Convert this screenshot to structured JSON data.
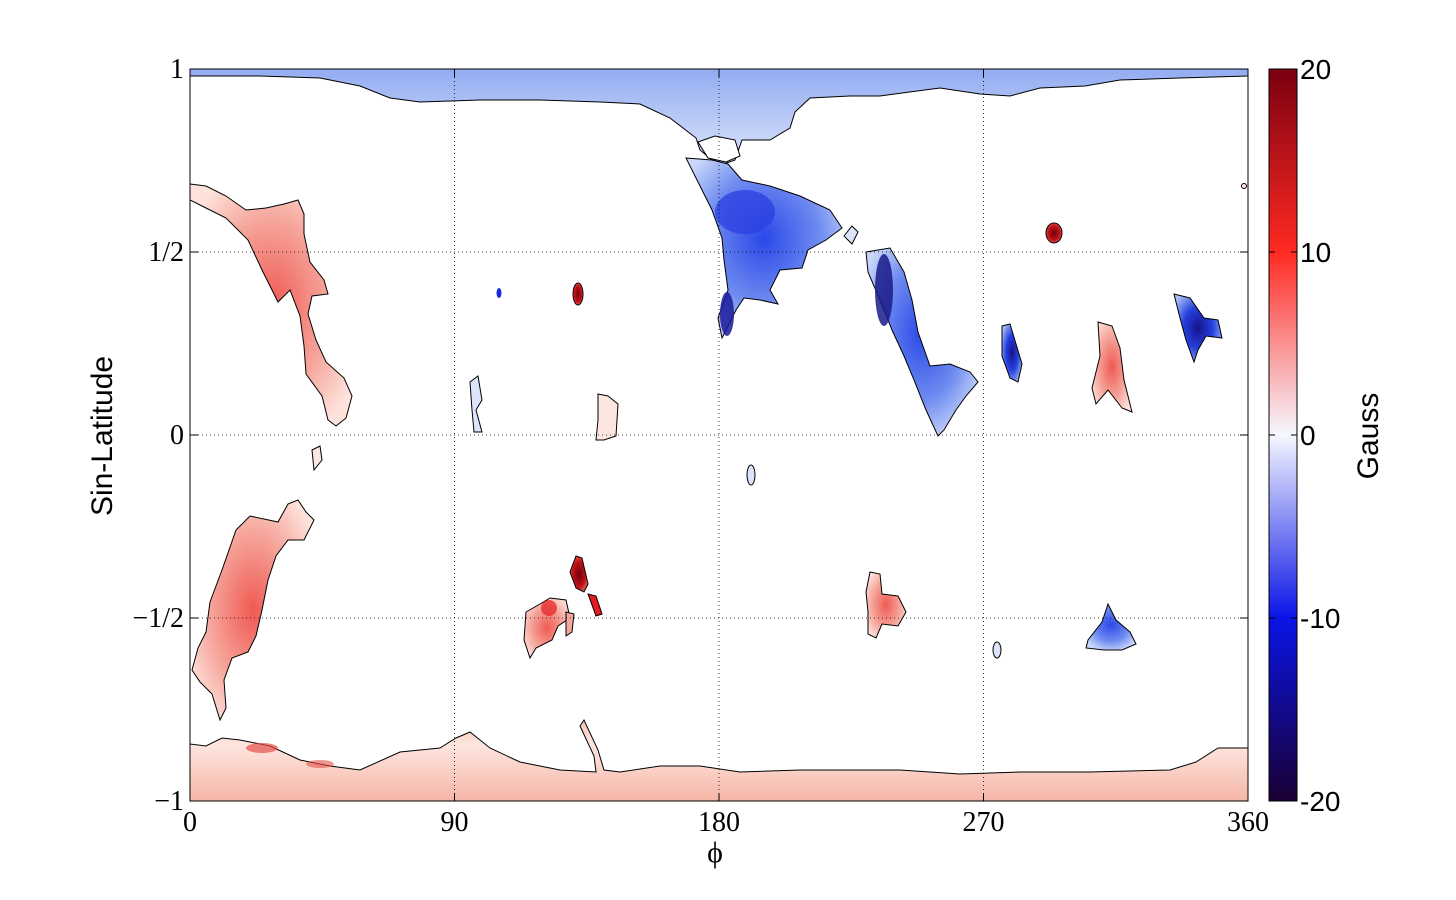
{
  "chart_data": {
    "type": "heatmap",
    "title": "",
    "xlabel": "ϕ",
    "ylabel": "Sin-Latitude",
    "xlim": [
      0,
      360
    ],
    "ylim": [
      -1,
      1
    ],
    "x_ticks": [
      {
        "value": 0,
        "label": "0"
      },
      {
        "value": 90,
        "label": "90"
      },
      {
        "value": 180,
        "label": "180"
      },
      {
        "value": 270,
        "label": "270"
      },
      {
        "value": 360,
        "label": "360"
      }
    ],
    "y_ticks": [
      {
        "value": 1,
        "label": "1"
      },
      {
        "value": 0.5,
        "label": "1/2"
      },
      {
        "value": 0,
        "label": "0"
      },
      {
        "value": -0.5,
        "label": "−1/2"
      },
      {
        "value": -1,
        "label": "−1"
      }
    ],
    "grid": true,
    "grid_style": "dotted",
    "colorbar": {
      "label": "Gauss",
      "range": [
        -20,
        20
      ],
      "ticks": [
        {
          "value": 20,
          "label": "20"
        },
        {
          "value": 10,
          "label": "10"
        },
        {
          "value": 0,
          "label": "0"
        },
        {
          "value": -10,
          "label": "-10"
        },
        {
          "value": -20,
          "label": "-20"
        }
      ],
      "colormap": [
        "#1a0033",
        "#0a14e6",
        "#f5f7ff",
        "#ff2a22",
        "#7a0010"
      ]
    },
    "regions": [
      {
        "name": "north-polar-cap",
        "polarity": "negative",
        "phi": [
          0,
          360
        ],
        "sinlat": [
          0.91,
          1.0
        ],
        "field_gauss": -4
      },
      {
        "name": "north-central-negative",
        "polarity": "negative",
        "phi": [
          168,
          224
        ],
        "sinlat": [
          0.28,
          0.75
        ],
        "field_gauss": -9
      },
      {
        "name": "north-diagonal-negative",
        "polarity": "negative",
        "phi": [
          229,
          269
        ],
        "sinlat": [
          -0.01,
          0.51
        ],
        "field_gauss": -8
      },
      {
        "name": "north-west-positive",
        "polarity": "positive",
        "phi": [
          0,
          47
        ],
        "sinlat": [
          0.01,
          0.69
        ],
        "field_gauss": 4
      },
      {
        "name": "spot-phi130-north",
        "polarity": "positive",
        "phi": [
          128,
          134
        ],
        "sinlat": [
          0.35,
          0.42
        ],
        "field_gauss": 18
      },
      {
        "name": "spot-phi294-north",
        "polarity": "positive",
        "phi": [
          291,
          297
        ],
        "sinlat": [
          0.52,
          0.57
        ],
        "field_gauss": 18
      },
      {
        "name": "patch-phi280-north",
        "polarity": "negative",
        "phi": [
          276,
          284
        ],
        "sinlat": [
          0.15,
          0.3
        ],
        "field_gauss": -10
      },
      {
        "name": "patch-phi315-north",
        "polarity": "positive",
        "phi": [
          306,
          319
        ],
        "sinlat": [
          0.06,
          0.31
        ],
        "field_gauss": 6
      },
      {
        "name": "patch-phi340-north",
        "polarity": "negative",
        "phi": [
          335,
          351
        ],
        "sinlat": [
          0.19,
          0.39
        ],
        "field_gauss": -14
      },
      {
        "name": "south-west-positive",
        "polarity": "positive",
        "phi": [
          0,
          42
        ],
        "sinlat": [
          -0.78,
          -0.19
        ],
        "field_gauss": 5
      },
      {
        "name": "patch-phi125-south",
        "polarity": "positive",
        "phi": [
          114,
          138
        ],
        "sinlat": [
          -0.61,
          -0.33
        ],
        "field_gauss": 10
      },
      {
        "name": "patch-phi235-south",
        "polarity": "positive",
        "phi": [
          231,
          244
        ],
        "sinlat": [
          -0.56,
          -0.37
        ],
        "field_gauss": 6
      },
      {
        "name": "patch-phi315-south",
        "polarity": "negative",
        "phi": [
          305,
          322
        ],
        "sinlat": [
          -0.59,
          -0.47
        ],
        "field_gauss": -7
      },
      {
        "name": "south-polar-cap",
        "polarity": "positive",
        "phi": [
          0,
          360
        ],
        "sinlat": [
          -1.0,
          -0.82
        ],
        "field_gauss": 4
      }
    ]
  }
}
